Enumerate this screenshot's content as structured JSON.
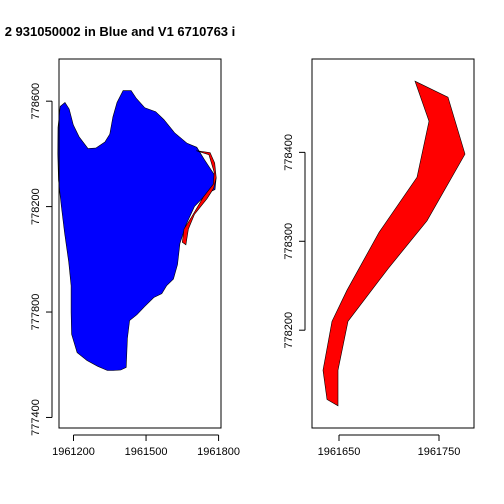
{
  "title": "2 931050002 in Blue and V1 6710763 i",
  "chart_data": [
    {
      "type": "polygon-map",
      "xlim": [
        1961140,
        1961810
      ],
      "ylim": [
        777360,
        778760
      ],
      "x_ticks": [
        1961200,
        1961500,
        1961800
      ],
      "x_ticklabels": [
        "1961200",
        "1961500",
        "1961800"
      ],
      "y_ticks": [
        777400,
        777800,
        778200,
        778600
      ],
      "y_ticklabels": [
        "777400",
        "777800",
        "778200",
        "778600"
      ],
      "series": [
        {
          "color": "#0000ff",
          "points": [
            [
              1961165,
              778595
            ],
            [
              1961182,
              778570
            ],
            [
              1961199,
              778510
            ],
            [
              1961223,
              778465
            ],
            [
              1961260,
              778420
            ],
            [
              1961292,
              778422
            ],
            [
              1961330,
              778445
            ],
            [
              1961350,
              778475
            ],
            [
              1961363,
              778540
            ],
            [
              1961380,
              778595
            ],
            [
              1961405,
              778640
            ],
            [
              1961438,
              778640
            ],
            [
              1961460,
              778610
            ],
            [
              1961495,
              778575
            ],
            [
              1961540,
              778560
            ],
            [
              1961574,
              778530
            ],
            [
              1961618,
              778480
            ],
            [
              1961670,
              778440
            ],
            [
              1961710,
              778425
            ],
            [
              1961740,
              778380
            ],
            [
              1961790,
              778310
            ],
            [
              1961785,
              778265
            ],
            [
              1961752,
              778250
            ],
            [
              1961700,
              778200
            ],
            [
              1961665,
              778130
            ],
            [
              1961640,
              778060
            ],
            [
              1961630,
              777980
            ],
            [
              1961613,
              777925
            ],
            [
              1961585,
              777900
            ],
            [
              1961565,
              777870
            ],
            [
              1961532,
              777855
            ],
            [
              1961493,
              777820
            ],
            [
              1961462,
              777790
            ],
            [
              1961432,
              777768
            ],
            [
              1961423,
              777700
            ],
            [
              1961418,
              777590
            ],
            [
              1961395,
              777580
            ],
            [
              1961365,
              777578
            ],
            [
              1961340,
              777578
            ],
            [
              1961300,
              777594
            ],
            [
              1961256,
              777616
            ],
            [
              1961215,
              777646
            ],
            [
              1961192,
              777716
            ],
            [
              1961190,
              777800
            ],
            [
              1961190,
              777900
            ],
            [
              1961180,
              777990
            ],
            [
              1961163,
              778100
            ],
            [
              1961150,
              778200
            ],
            [
              1961138,
              778300
            ],
            [
              1961135,
              778400
            ],
            [
              1961136,
              778500
            ],
            [
              1961145,
              778580
            ]
          ]
        },
        {
          "color": "#ff0000",
          "points": [
            [
              1961708,
              778412
            ],
            [
              1961760,
              778397
            ],
            [
              1961782,
              778330
            ],
            [
              1961778,
              778285
            ],
            [
              1961737,
              778236
            ],
            [
              1961688,
              778160
            ],
            [
              1961657,
              778115
            ],
            [
              1961650,
              778065
            ],
            [
              1961665,
              778055
            ],
            [
              1961675,
              778115
            ],
            [
              1961700,
              778170
            ],
            [
              1961752,
              778230
            ],
            [
              1961780,
              778270
            ],
            [
              1961790,
              778310
            ],
            [
              1961784,
              778365
            ],
            [
              1961765,
              778405
            ]
          ]
        }
      ]
    },
    {
      "type": "polygon-map",
      "xlim": [
        1961623,
        1961785
      ],
      "ylim": [
        778090,
        778505
      ],
      "x_ticks": [
        1961650,
        1961750
      ],
      "x_ticklabels": [
        "1961650",
        "1961750"
      ],
      "y_ticks": [
        778200,
        778300,
        778400
      ],
      "y_ticklabels": [
        "778200",
        "778300",
        "778400"
      ],
      "series": [
        {
          "color": "#ff0000",
          "points": [
            [
              1961726,
              778480
            ],
            [
              1961759,
              778462
            ],
            [
              1961776,
              778398
            ],
            [
              1961738,
              778323
            ],
            [
              1961699,
              778269
            ],
            [
              1961659,
              778210
            ],
            [
              1961649,
              778155
            ],
            [
              1961649,
              778115
            ],
            [
              1961638,
              778122
            ],
            [
              1961634,
              778155
            ],
            [
              1961643,
              778210
            ],
            [
              1961658,
              778245
            ],
            [
              1961690,
              778310
            ],
            [
              1961728,
              778372
            ],
            [
              1961740,
              778435
            ],
            [
              1961726,
              778480
            ]
          ]
        }
      ]
    }
  ]
}
